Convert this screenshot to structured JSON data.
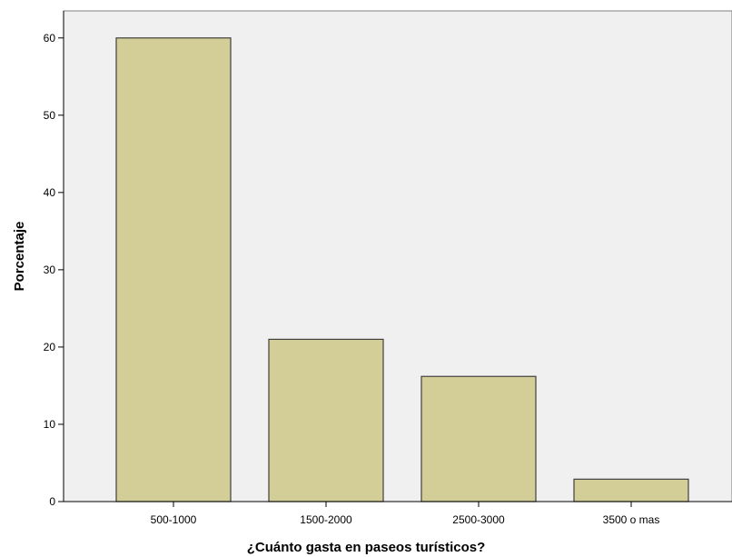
{
  "chart_data": {
    "type": "bar",
    "categories": [
      "500-1000",
      "1500-2000",
      "2500-3000",
      "3500 o mas"
    ],
    "values": [
      60.0,
      21.0,
      16.2,
      2.9
    ],
    "title": "",
    "xlabel": "¿Cuánto gasta en paseos turísticos?",
    "ylabel": "Porcentaje",
    "ylim": [
      0,
      63.5
    ],
    "yticks": [
      0,
      10,
      20,
      30,
      40,
      50,
      60
    ],
    "grid": false,
    "colors": {
      "plot_background": "#f0f0f0",
      "bar_fill": "#d3ce97",
      "bar_stroke": "#404040",
      "axis": "#000000"
    }
  }
}
